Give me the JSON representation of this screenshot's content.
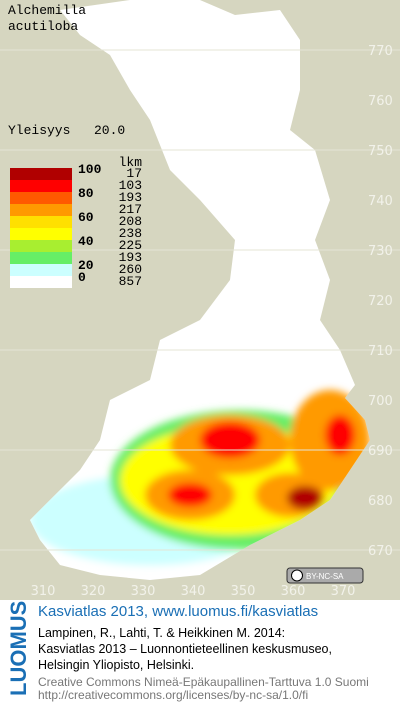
{
  "title": [
    "Alchemilla",
    "acutiloba"
  ],
  "frequency": {
    "label": "Yleisyys",
    "value": "20.0"
  },
  "legend": {
    "scale_labels": [
      100,
      80,
      60,
      40,
      20,
      0
    ],
    "count_header": "lkm",
    "counts": [
      17,
      103,
      193,
      217,
      208,
      238,
      225,
      193,
      260,
      857
    ],
    "colors": [
      "#b00000",
      "#ff0000",
      "#ff5a00",
      "#ff9a00",
      "#ffe000",
      "#ffff00",
      "#a8ee30",
      "#66ee66",
      "#ccffff",
      "#ffffff"
    ]
  },
  "grid": {
    "y_labels": [
      770,
      760,
      750,
      740,
      730,
      720,
      710,
      700,
      690,
      680,
      670
    ],
    "x_labels": [
      310,
      320,
      330,
      340,
      350,
      360,
      370
    ]
  },
  "badge": "BY-NC-SA",
  "footer": {
    "brand": "LUOMUS",
    "title": "Kasviatlas 2013, www.luomus.fi/kasviatlas",
    "citation": [
      "Lampinen, R., Lahti, T. & Heikkinen M. 2014:",
      "Kasviatlas 2013 – Luonnontieteellinen keskusmuseo,",
      "Helsingin Yliopisto, Helsinki."
    ],
    "license": [
      "Creative Commons Nimeä-Epäkaupallinen-Tarttuva 1.0 Suomi",
      "http://creativecommons.org/licenses/by-nc-sa/1.0/fi"
    ]
  }
}
